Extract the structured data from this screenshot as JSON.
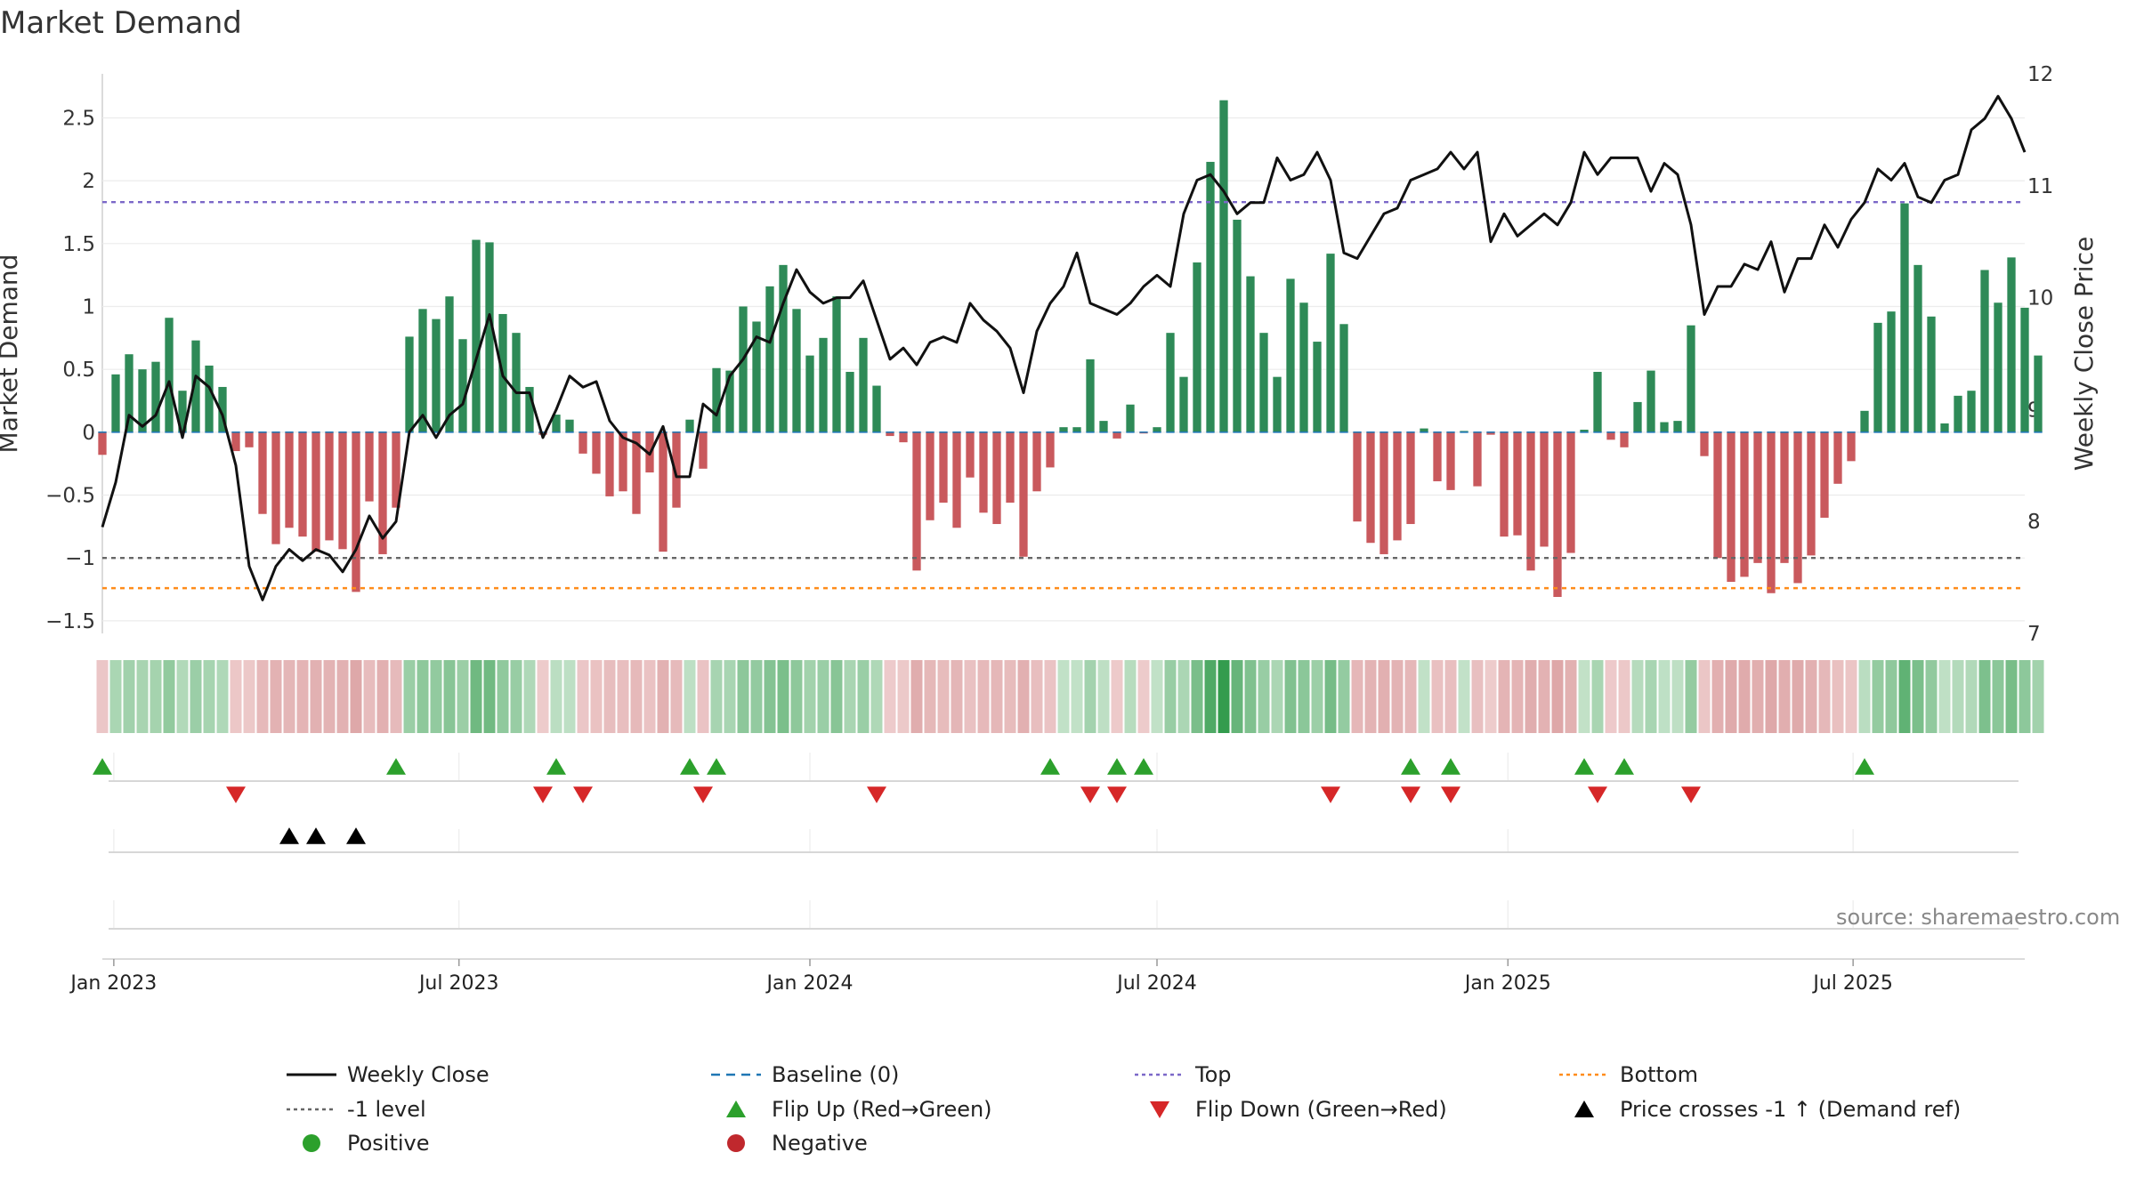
{
  "title": "Market Demand",
  "source": "source: sharemaestro.com",
  "legend": [
    {
      "key": "close",
      "label": "Weekly Close",
      "symbol": "line-solid",
      "color": "#111111"
    },
    {
      "key": "baseline",
      "label": "Baseline (0)",
      "symbol": "line-dash",
      "color": "#1f77b4"
    },
    {
      "key": "top",
      "label": "Top",
      "symbol": "line-dot",
      "color": "#7b68c8"
    },
    {
      "key": "bottom",
      "label": "Bottom",
      "symbol": "line-dot",
      "color": "#ff8c1a"
    },
    {
      "key": "minus1",
      "label": "-1 level",
      "symbol": "line-dot",
      "color": "#666666"
    },
    {
      "key": "flipup",
      "label": "Flip Up (Red→Green)",
      "symbol": "tri-up",
      "color": "#2ca02c"
    },
    {
      "key": "flipdown",
      "label": "Flip Down (Green→Red)",
      "symbol": "tri-down",
      "color": "#d62728"
    },
    {
      "key": "pricecross",
      "label": "Price crosses -1 ↑ (Demand ref)",
      "symbol": "tri-up",
      "color": "#000000"
    },
    {
      "key": "positive",
      "label": "Positive",
      "symbol": "dot",
      "color": "#2ca02c"
    },
    {
      "key": "negative",
      "label": "Negative",
      "symbol": "dot",
      "color": "#c0282d"
    }
  ],
  "chart_data": {
    "type": "bar+line",
    "title": "Market Demand",
    "ylabel_left": "Market Demand",
    "ylabel_right": "Weekly Close Price",
    "ylim_left": [
      -1.6,
      2.85
    ],
    "ylim_right": [
      7.0,
      12.0
    ],
    "yticks_left": [
      -1.5,
      -1,
      -0.5,
      0,
      0.5,
      1,
      1.5,
      2,
      2.5
    ],
    "ytick_labels_left": [
      "−1.5",
      "−1",
      "−0.5",
      "0",
      "0.5",
      "1",
      "1.5",
      "2",
      "2.5"
    ],
    "yticks_right": [
      7,
      8,
      9,
      10,
      11,
      12
    ],
    "ytick_labels_right": [
      "7",
      "8",
      "9",
      "10",
      "11",
      "12"
    ],
    "x_start": "2022-12-26",
    "x_end": "2025-09-29",
    "xticks": [
      {
        "date": "2023-01-01",
        "label": "Jan 2023"
      },
      {
        "date": "2023-07-01",
        "label": "Jul 2023"
      },
      {
        "date": "2024-01-01",
        "label": "Jan 2024"
      },
      {
        "date": "2024-07-01",
        "label": "Jul 2024"
      },
      {
        "date": "2025-01-01",
        "label": "Jan 2025"
      },
      {
        "date": "2025-07-01",
        "label": "Jul 2025"
      }
    ],
    "levels": {
      "top": 1.83,
      "bottom": -1.24,
      "minus_one": -1.0,
      "baseline": 0
    },
    "weeks_start": "2022-12-26",
    "demand": [
      -0.18,
      0.46,
      0.62,
      0.5,
      0.56,
      0.91,
      0.33,
      0.73,
      0.53,
      0.36,
      -0.15,
      -0.12,
      -0.65,
      -0.89,
      -0.76,
      -0.83,
      -0.95,
      -0.86,
      -0.93,
      -1.27,
      -0.55,
      -0.97,
      -0.6,
      0.76,
      0.98,
      0.9,
      1.08,
      0.74,
      1.53,
      1.51,
      0.94,
      0.79,
      0.36,
      -0.02,
      0.14,
      0.1,
      -0.17,
      -0.33,
      -0.51,
      -0.47,
      -0.65,
      -0.32,
      -0.95,
      -0.6,
      0.1,
      -0.29,
      0.51,
      0.49,
      1.0,
      0.88,
      1.16,
      1.33,
      0.98,
      0.61,
      0.75,
      1.08,
      0.48,
      0.75,
      0.37,
      -0.03,
      -0.08,
      -1.1,
      -0.7,
      -0.56,
      -0.76,
      -0.36,
      -0.64,
      -0.73,
      -0.56,
      -0.99,
      -0.47,
      -0.28,
      0.04,
      0.04,
      0.58,
      0.09,
      -0.05,
      0.22,
      -0.01,
      0.04,
      0.79,
      0.44,
      1.35,
      2.15,
      2.64,
      1.69,
      1.24,
      0.79,
      0.44,
      1.22,
      1.03,
      0.72,
      1.42,
      0.86,
      -0.71,
      -0.88,
      -0.97,
      -0.86,
      -0.73,
      0.03,
      -0.39,
      -0.46,
      0.01,
      -0.43,
      -0.02,
      -0.83,
      -0.82,
      -1.1,
      -0.91,
      -1.31,
      -0.96,
      0.02,
      0.48,
      -0.06,
      -0.12,
      0.24,
      0.49,
      0.08,
      0.09,
      0.85,
      -0.19,
      -1.0,
      -1.19,
      -1.15,
      -1.04,
      -1.28,
      -1.04,
      -1.2,
      -0.98,
      -0.68,
      -0.41,
      -0.23,
      0.17,
      0.87,
      0.96,
      1.82,
      1.33,
      0.92,
      0.07,
      0.29,
      0.33,
      1.29,
      1.03,
      1.39,
      0.99,
      0.61
    ],
    "close": [
      7.95,
      8.35,
      8.95,
      8.85,
      8.95,
      9.25,
      8.75,
      9.3,
      9.2,
      8.95,
      8.5,
      7.6,
      7.3,
      7.6,
      7.75,
      7.65,
      7.75,
      7.7,
      7.55,
      7.75,
      8.05,
      7.85,
      8.0,
      8.8,
      8.95,
      8.75,
      8.95,
      9.05,
      9.45,
      9.85,
      9.3,
      9.15,
      9.15,
      8.75,
      9.0,
      9.3,
      9.2,
      9.25,
      8.9,
      8.75,
      8.7,
      8.6,
      8.85,
      8.4,
      8.4,
      9.05,
      8.95,
      9.3,
      9.45,
      9.65,
      9.6,
      9.95,
      10.25,
      10.05,
      9.95,
      10.0,
      10.0,
      10.15,
      9.8,
      9.45,
      9.55,
      9.4,
      9.6,
      9.65,
      9.6,
      9.95,
      9.8,
      9.7,
      9.55,
      9.15,
      9.7,
      9.95,
      10.1,
      10.4,
      9.95,
      9.9,
      9.85,
      9.95,
      10.1,
      10.2,
      10.1,
      10.75,
      11.05,
      11.1,
      10.95,
      10.75,
      10.85,
      10.85,
      11.25,
      11.05,
      11.1,
      11.3,
      11.05,
      10.4,
      10.35,
      10.55,
      10.75,
      10.8,
      11.05,
      11.1,
      11.15,
      11.3,
      11.15,
      11.3,
      10.5,
      10.75,
      10.55,
      10.65,
      10.75,
      10.65,
      10.85,
      11.3,
      11.1,
      11.25,
      11.25,
      11.25,
      10.95,
      11.2,
      11.1,
      10.65,
      9.85,
      10.1,
      10.1,
      10.3,
      10.25,
      10.5,
      10.05,
      10.35,
      10.35,
      10.65,
      10.45,
      10.7,
      10.85,
      11.15,
      11.05,
      11.2,
      10.9,
      10.85,
      11.05,
      11.1,
      11.5,
      11.6,
      11.8,
      11.6,
      11.3
    ],
    "strip_intensity_note": "one colored cell per week: green tones for positive demand, red tones for negative demand, saturation scaled by magnitude",
    "flip_up_weeks": [
      0,
      22,
      34,
      44,
      46,
      71,
      76,
      78,
      98,
      101,
      111,
      114,
      132
    ],
    "flip_down_weeks": [
      10,
      33,
      36,
      45,
      58,
      74,
      76,
      92,
      98,
      101,
      112,
      119
    ],
    "price_cross_weeks": [
      14,
      16,
      19
    ]
  }
}
